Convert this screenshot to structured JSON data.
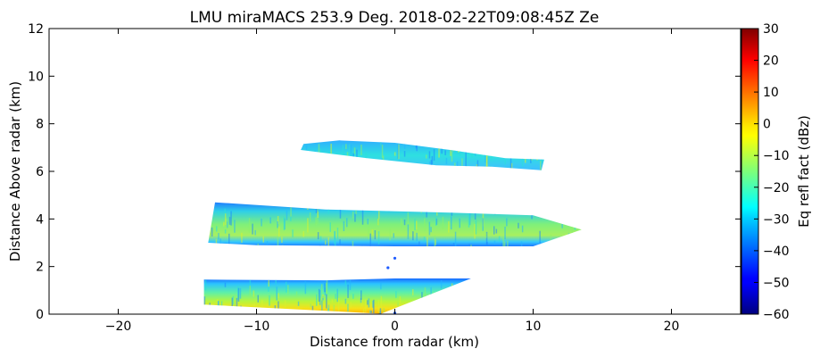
{
  "chart_data": {
    "type": "heatmap",
    "title": "LMU miraMACS 253.9 Deg. 2018-02-22T09:08:45Z  Ze",
    "xlabel": "Distance from radar (km)",
    "ylabel": "Distance Above radar  (km)",
    "xlim": [
      -25,
      25
    ],
    "ylim": [
      0,
      12
    ],
    "x_ticks": [
      "−20",
      "−10",
      "0",
      "10",
      "20"
    ],
    "x_tick_values": [
      -20,
      -10,
      0,
      10,
      20
    ],
    "y_ticks": [
      "0",
      "2",
      "4",
      "6",
      "8",
      "10",
      "12"
    ],
    "y_tick_values": [
      0,
      2,
      4,
      6,
      8,
      10,
      12
    ],
    "colorbar": {
      "label": "Eq refl fact (dBz)",
      "range": [
        -60,
        30
      ],
      "colormap": "jet",
      "ticks": [
        "30",
        "20",
        "10",
        "0",
        "−10",
        "−20",
        "−30",
        "−40",
        "−50",
        "−60"
      ],
      "tick_values": [
        30,
        20,
        10,
        0,
        -10,
        -20,
        -30,
        -40,
        -50,
        -60
      ]
    },
    "cloud_layers": [
      {
        "name": "low layer",
        "polygon_km": [
          [
            -13.8,
            1.45
          ],
          [
            -5,
            1.42
          ],
          [
            0,
            1.5
          ],
          [
            5.5,
            1.5
          ],
          [
            -1,
            0.02
          ],
          [
            -13.8,
            0.4
          ]
        ],
        "dbz_top": -40,
        "dbz_bottom": 0
      },
      {
        "name": "middle layer",
        "polygon_km": [
          [
            -13,
            4.7
          ],
          [
            -5,
            4.4
          ],
          [
            5,
            4.25
          ],
          [
            10,
            4.15
          ],
          [
            13.5,
            3.55
          ],
          [
            10,
            2.85
          ],
          [
            0,
            2.85
          ],
          [
            -10,
            2.9
          ],
          [
            -13.5,
            3.0
          ]
        ],
        "dbz_top": -35,
        "dbz_bottom": -15
      },
      {
        "name": "upper layer",
        "polygon_km": [
          [
            -6.6,
            7.15
          ],
          [
            -4,
            7.3
          ],
          [
            0,
            7.2
          ],
          [
            4,
            6.9
          ],
          [
            8,
            6.55
          ],
          [
            10.8,
            6.5
          ],
          [
            10.6,
            6.05
          ],
          [
            7,
            6.2
          ],
          [
            3,
            6.25
          ],
          [
            -2,
            6.55
          ],
          [
            -6.8,
            6.9
          ]
        ],
        "dbz_top": -30,
        "dbz_bottom": -25
      }
    ],
    "grid": false,
    "legend": "none"
  }
}
